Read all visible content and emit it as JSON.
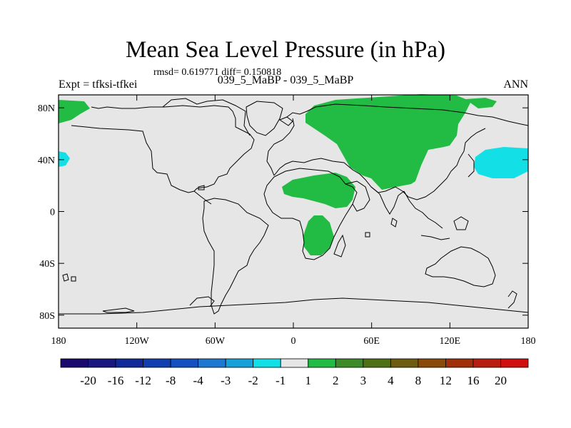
{
  "title": "Mean Sea Level Pressure (in hPa)",
  "stats": "rmsd= 0.619771 diff= 0.150818",
  "experiment": "Expt = tfksi-tfkei",
  "case_compare": "039_5_MaBP - 039_5_MaBP",
  "season": "ANN",
  "y_axis": {
    "ticks": [
      {
        "value": 80,
        "label": "80N"
      },
      {
        "value": 40,
        "label": "40N"
      },
      {
        "value": 0,
        "label": "0"
      },
      {
        "value": -40,
        "label": "40S"
      },
      {
        "value": -80,
        "label": "80S"
      }
    ]
  },
  "x_axis": {
    "ticks": [
      {
        "value": -180,
        "label": "180"
      },
      {
        "value": -120,
        "label": "120W"
      },
      {
        "value": -60,
        "label": "60W"
      },
      {
        "value": 0,
        "label": "0"
      },
      {
        "value": 60,
        "label": "60E"
      },
      {
        "value": 120,
        "label": "120E"
      },
      {
        "value": 180,
        "label": "180"
      }
    ]
  },
  "colorbar": {
    "colors": [
      "#1a0a6e",
      "#18187e",
      "#102a9a",
      "#1040b0",
      "#1450c0",
      "#1e78d0",
      "#18a0d8",
      "#12e0e6",
      "#e6e6e6",
      "#22bb44",
      "#3c8a28",
      "#4f7015",
      "#6e5c10",
      "#8a4a0a",
      "#a03008",
      "#b81e10",
      "#d01010"
    ],
    "labels": [
      "-20",
      "-16",
      "-12",
      "-8",
      "-4",
      "-3",
      "-2",
      "-1",
      "1",
      "2",
      "3",
      "4",
      "8",
      "12",
      "16",
      "20"
    ]
  },
  "colors": {
    "land_neutral": "#e6e6e6",
    "positive": "#22bb44",
    "negative": "#12e0e6",
    "coast": "#000000"
  }
}
